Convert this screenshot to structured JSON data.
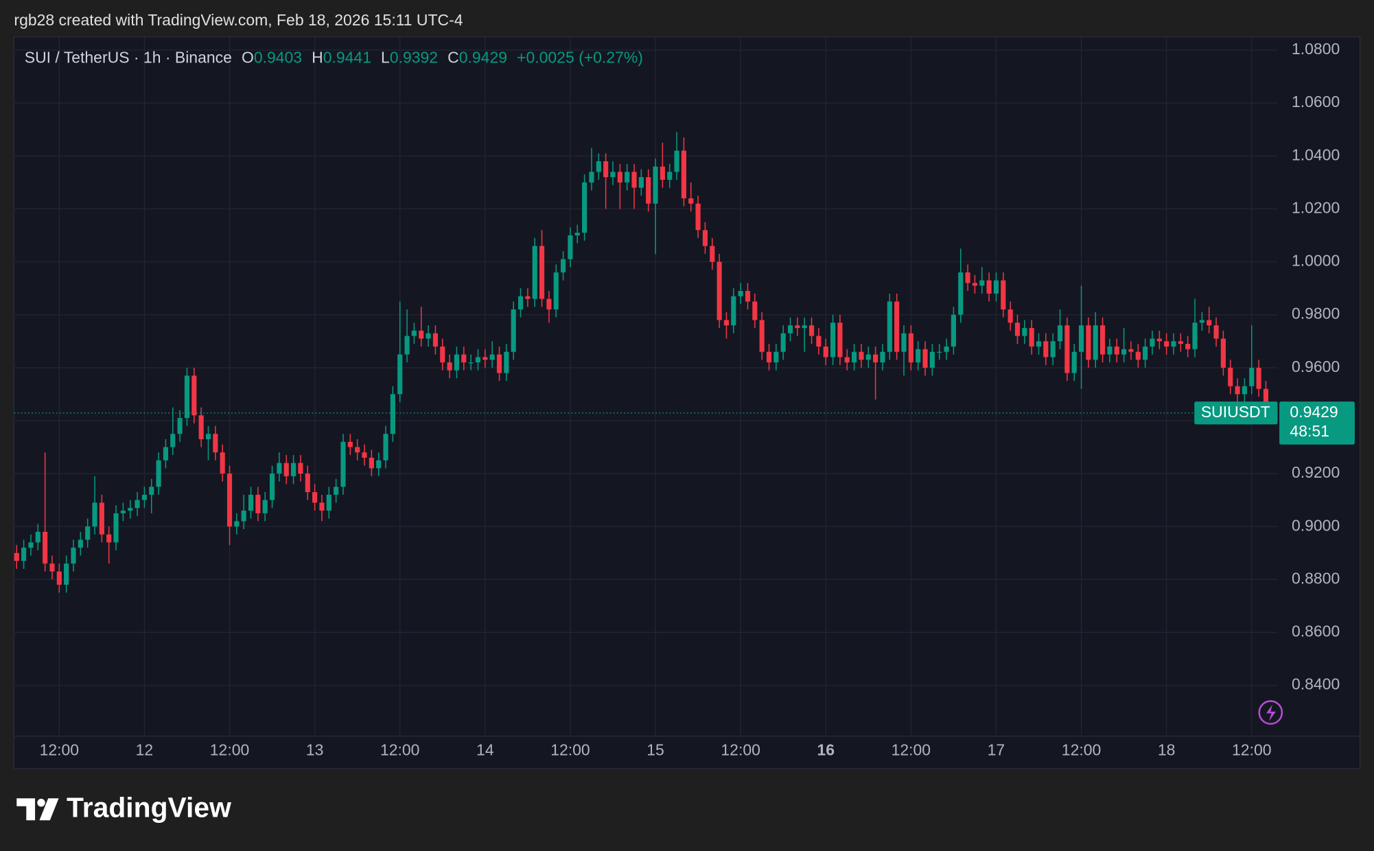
{
  "header": {
    "text": "rgb28 created with TradingView.com, Feb 18, 2026 15:11 UTC-4"
  },
  "chart_data": {
    "type": "candlestick",
    "symbol": "SUI / TetherUS · 1h · Binance",
    "ohlc_labels": [
      "O",
      "H",
      "L",
      "C"
    ],
    "change": "+0.0025 (+0.27%)",
    "ticker": "SUIUSDT",
    "countdown": "48:51",
    "up_color": "#089981",
    "down_color": "#f23645",
    "grid": true,
    "ylim": [
      0.8208,
      1.085
    ],
    "yticks": [
      {
        "value": 0.84,
        "label": "0.8400"
      },
      {
        "value": 0.86,
        "label": "0.8600"
      },
      {
        "value": 0.88,
        "label": "0.8800"
      },
      {
        "value": 0.9,
        "label": "0.9000"
      },
      {
        "value": 0.92,
        "label": "0.9200"
      },
      {
        "value": 0.94,
        "label": "0.9400"
      },
      {
        "value": 0.96,
        "label": "0.9600"
      },
      {
        "value": 0.98,
        "label": "0.9800"
      },
      {
        "value": 1.0,
        "label": "1.0000"
      },
      {
        "value": 1.02,
        "label": "1.0200"
      },
      {
        "value": 1.04,
        "label": "1.0400"
      },
      {
        "value": 1.06,
        "label": "1.0600"
      },
      {
        "value": 1.08,
        "label": "1.0800"
      }
    ],
    "categories": [
      null,
      null,
      null,
      null,
      null,
      null,
      "12:00",
      null,
      null,
      null,
      null,
      null,
      null,
      null,
      null,
      null,
      null,
      null,
      "12",
      null,
      null,
      null,
      null,
      null,
      null,
      null,
      null,
      null,
      null,
      null,
      "12:00",
      null,
      null,
      null,
      null,
      null,
      null,
      null,
      null,
      null,
      null,
      null,
      "13",
      null,
      null,
      null,
      null,
      null,
      null,
      null,
      null,
      null,
      null,
      null,
      "12:00",
      null,
      null,
      null,
      null,
      null,
      null,
      null,
      null,
      null,
      null,
      null,
      "14",
      null,
      null,
      null,
      null,
      null,
      null,
      null,
      null,
      null,
      null,
      null,
      "12:00",
      null,
      null,
      null,
      null,
      null,
      null,
      null,
      null,
      null,
      null,
      null,
      "15",
      null,
      null,
      null,
      null,
      null,
      null,
      null,
      null,
      null,
      null,
      null,
      "12:00",
      null,
      null,
      null,
      null,
      null,
      null,
      null,
      null,
      null,
      null,
      null,
      "16",
      null,
      null,
      null,
      null,
      null,
      null,
      null,
      null,
      null,
      null,
      null,
      "12:00",
      null,
      null,
      null,
      null,
      null,
      null,
      null,
      null,
      null,
      null,
      null,
      "17",
      null,
      null,
      null,
      null,
      null,
      null,
      null,
      null,
      null,
      null,
      null,
      "12:00",
      null,
      null,
      null,
      null,
      null,
      null,
      null,
      null,
      null,
      null,
      null,
      "18",
      null,
      null,
      null,
      null,
      null,
      null,
      null,
      null,
      null,
      null,
      null,
      "12:00",
      null,
      null,
      null
    ],
    "open": [
      0.89,
      0.887,
      0.892,
      0.894,
      0.898,
      0.886,
      0.883,
      0.878,
      0.886,
      0.892,
      0.895,
      0.9,
      0.909,
      0.897,
      0.894,
      0.905,
      0.906,
      0.907,
      0.91,
      0.912,
      0.915,
      0.925,
      0.93,
      0.935,
      0.941,
      0.957,
      0.942,
      0.933,
      0.935,
      0.928,
      0.92,
      0.9,
      0.902,
      0.906,
      0.912,
      0.905,
      0.91,
      0.92,
      0.924,
      0.919,
      0.924,
      0.92,
      0.913,
      0.909,
      0.906,
      0.912,
      0.915,
      0.932,
      0.93,
      0.928,
      0.926,
      0.922,
      0.925,
      0.935,
      0.95,
      0.965,
      0.972,
      0.974,
      0.971,
      0.973,
      0.968,
      0.962,
      0.959,
      0.965,
      0.962,
      0.962,
      0.964,
      0.963,
      0.965,
      0.958,
      0.966,
      0.982,
      0.987,
      0.986,
      1.006,
      0.986,
      0.982,
      0.996,
      1.001,
      1.01,
      1.011,
      1.03,
      1.034,
      1.038,
      1.032,
      1.034,
      1.03,
      1.034,
      1.028,
      1.032,
      1.022,
      1.036,
      1.031,
      1.034,
      1.042,
      1.024,
      1.022,
      1.012,
      1.006,
      1.0,
      0.978,
      0.976,
      0.987,
      0.989,
      0.985,
      0.978,
      0.966,
      0.962,
      0.966,
      0.973,
      0.976,
      0.975,
      0.976,
      0.972,
      0.968,
      0.964,
      0.977,
      0.964,
      0.962,
      0.966,
      0.963,
      0.965,
      0.962,
      0.966,
      0.985,
      0.966,
      0.973,
      0.962,
      0.967,
      0.96,
      0.966,
      0.966,
      0.968,
      0.98,
      0.996,
      0.992,
      0.991,
      0.993,
      0.988,
      0.993,
      0.982,
      0.977,
      0.972,
      0.975,
      0.968,
      0.97,
      0.964,
      0.97,
      0.976,
      0.958,
      0.966,
      0.976,
      0.963,
      0.976,
      0.965,
      0.968,
      0.965,
      0.967,
      0.966,
      0.963,
      0.968,
      0.971,
      0.97,
      0.968,
      0.97,
      0.969,
      0.967,
      0.977,
      0.978,
      0.976,
      0.971,
      0.96,
      0.953,
      0.95,
      0.953,
      0.96,
      0.952,
      0.9403
    ],
    "high": [
      0.893,
      0.895,
      0.897,
      0.901,
      0.928,
      0.889,
      0.886,
      0.889,
      0.895,
      0.898,
      0.903,
      0.919,
      0.912,
      0.9,
      0.908,
      0.909,
      0.91,
      0.913,
      0.915,
      0.918,
      0.928,
      0.933,
      0.945,
      0.944,
      0.96,
      0.96,
      0.945,
      0.938,
      0.938,
      0.931,
      0.923,
      0.905,
      0.912,
      0.915,
      0.915,
      0.913,
      0.923,
      0.928,
      0.927,
      0.927,
      0.927,
      0.923,
      0.916,
      0.912,
      0.915,
      0.918,
      0.935,
      0.935,
      0.933,
      0.931,
      0.929,
      0.928,
      0.938,
      0.953,
      0.985,
      0.982,
      0.977,
      0.983,
      0.976,
      0.976,
      0.971,
      0.965,
      0.968,
      0.968,
      0.965,
      0.967,
      0.967,
      0.97,
      0.968,
      0.969,
      0.985,
      0.99,
      0.99,
      1.009,
      1.012,
      0.989,
      0.999,
      1.004,
      1.013,
      1.014,
      1.033,
      1.043,
      1.041,
      1.041,
      1.038,
      1.037,
      1.037,
      1.037,
      1.035,
      1.035,
      1.039,
      1.045,
      1.037,
      1.049,
      1.047,
      1.03,
      1.025,
      1.015,
      1.009,
      1.003,
      0.981,
      0.99,
      0.992,
      0.992,
      0.988,
      0.981,
      0.969,
      0.969,
      0.976,
      0.979,
      0.979,
      0.979,
      0.979,
      0.975,
      0.971,
      0.98,
      0.98,
      0.967,
      0.969,
      0.969,
      0.968,
      0.968,
      0.969,
      0.988,
      0.988,
      0.976,
      0.976,
      0.97,
      0.97,
      0.969,
      0.969,
      0.971,
      0.983,
      1.005,
      0.999,
      0.995,
      0.998,
      0.996,
      0.996,
      0.996,
      0.985,
      0.98,
      0.978,
      0.978,
      0.973,
      0.973,
      0.973,
      0.982,
      0.979,
      0.969,
      0.991,
      0.979,
      0.981,
      0.979,
      0.971,
      0.971,
      0.975,
      0.97,
      0.969,
      0.971,
      0.974,
      0.974,
      0.973,
      0.973,
      0.973,
      0.972,
      0.986,
      0.981,
      0.983,
      0.979,
      0.974,
      0.963,
      0.956,
      0.956,
      0.976,
      0.963,
      0.955,
      0.9441
    ],
    "low": [
      0.884,
      0.884,
      0.889,
      0.891,
      0.883,
      0.88,
      0.875,
      0.875,
      0.883,
      0.889,
      0.892,
      0.897,
      0.894,
      0.886,
      0.891,
      0.902,
      0.903,
      0.904,
      0.907,
      0.905,
      0.912,
      0.922,
      0.927,
      0.932,
      0.938,
      0.939,
      0.93,
      0.925,
      0.925,
      0.917,
      0.893,
      0.897,
      0.899,
      0.903,
      0.902,
      0.902,
      0.907,
      0.917,
      0.916,
      0.916,
      0.917,
      0.91,
      0.906,
      0.902,
      0.903,
      0.909,
      0.912,
      0.927,
      0.925,
      0.923,
      0.919,
      0.919,
      0.922,
      0.932,
      0.947,
      0.962,
      0.969,
      0.968,
      0.968,
      0.965,
      0.959,
      0.956,
      0.956,
      0.959,
      0.959,
      0.959,
      0.96,
      0.96,
      0.955,
      0.955,
      0.963,
      0.979,
      0.983,
      0.983,
      0.983,
      0.977,
      0.979,
      0.993,
      0.998,
      1.007,
      1.008,
      1.027,
      1.031,
      1.02,
      1.029,
      1.02,
      1.027,
      1.02,
      1.025,
      1.019,
      1.003,
      1.028,
      1.028,
      1.031,
      1.021,
      1.019,
      1.009,
      1.003,
      0.997,
      0.975,
      0.971,
      0.973,
      0.984,
      0.982,
      0.975,
      0.963,
      0.959,
      0.959,
      0.963,
      0.97,
      0.972,
      0.966,
      0.969,
      0.965,
      0.961,
      0.961,
      0.961,
      0.959,
      0.959,
      0.96,
      0.96,
      0.948,
      0.959,
      0.963,
      0.963,
      0.957,
      0.959,
      0.959,
      0.957,
      0.957,
      0.963,
      0.963,
      0.965,
      0.977,
      0.989,
      0.988,
      0.988,
      0.985,
      0.985,
      0.979,
      0.974,
      0.969,
      0.969,
      0.965,
      0.965,
      0.961,
      0.961,
      0.967,
      0.955,
      0.955,
      0.952,
      0.96,
      0.96,
      0.962,
      0.962,
      0.962,
      0.962,
      0.963,
      0.96,
      0.96,
      0.965,
      0.967,
      0.965,
      0.965,
      0.966,
      0.964,
      0.964,
      0.974,
      0.973,
      0.968,
      0.957,
      0.95,
      0.947,
      0.947,
      0.95,
      0.949,
      0.939,
      0.9392
    ],
    "close": [
      0.887,
      0.892,
      0.894,
      0.898,
      0.886,
      0.883,
      0.878,
      0.886,
      0.892,
      0.895,
      0.9,
      0.909,
      0.897,
      0.894,
      0.905,
      0.906,
      0.907,
      0.91,
      0.912,
      0.915,
      0.925,
      0.93,
      0.935,
      0.941,
      0.957,
      0.942,
      0.933,
      0.935,
      0.928,
      0.92,
      0.9,
      0.902,
      0.906,
      0.912,
      0.905,
      0.91,
      0.92,
      0.924,
      0.919,
      0.924,
      0.92,
      0.913,
      0.909,
      0.906,
      0.912,
      0.915,
      0.932,
      0.93,
      0.928,
      0.926,
      0.922,
      0.925,
      0.935,
      0.95,
      0.965,
      0.972,
      0.974,
      0.971,
      0.973,
      0.968,
      0.962,
      0.959,
      0.965,
      0.962,
      0.962,
      0.964,
      0.963,
      0.965,
      0.958,
      0.966,
      0.982,
      0.987,
      0.986,
      1.006,
      0.986,
      0.982,
      0.996,
      1.001,
      1.01,
      1.011,
      1.03,
      1.034,
      1.038,
      1.032,
      1.034,
      1.03,
      1.034,
      1.028,
      1.032,
      1.022,
      1.036,
      1.031,
      1.034,
      1.042,
      1.024,
      1.022,
      1.012,
      1.006,
      1.0,
      0.978,
      0.976,
      0.987,
      0.989,
      0.985,
      0.978,
      0.966,
      0.962,
      0.966,
      0.973,
      0.976,
      0.975,
      0.976,
      0.972,
      0.968,
      0.964,
      0.977,
      0.964,
      0.962,
      0.966,
      0.963,
      0.965,
      0.962,
      0.966,
      0.985,
      0.966,
      0.973,
      0.962,
      0.967,
      0.96,
      0.966,
      0.966,
      0.968,
      0.98,
      0.996,
      0.992,
      0.991,
      0.993,
      0.988,
      0.993,
      0.982,
      0.977,
      0.972,
      0.975,
      0.968,
      0.97,
      0.964,
      0.97,
      0.976,
      0.958,
      0.966,
      0.976,
      0.963,
      0.976,
      0.965,
      0.968,
      0.965,
      0.967,
      0.966,
      0.963,
      0.968,
      0.971,
      0.97,
      0.968,
      0.97,
      0.969,
      0.967,
      0.977,
      0.978,
      0.976,
      0.971,
      0.96,
      0.953,
      0.95,
      0.953,
      0.96,
      0.952,
      0.9403,
      0.9429
    ]
  },
  "watermark": "TradingView"
}
